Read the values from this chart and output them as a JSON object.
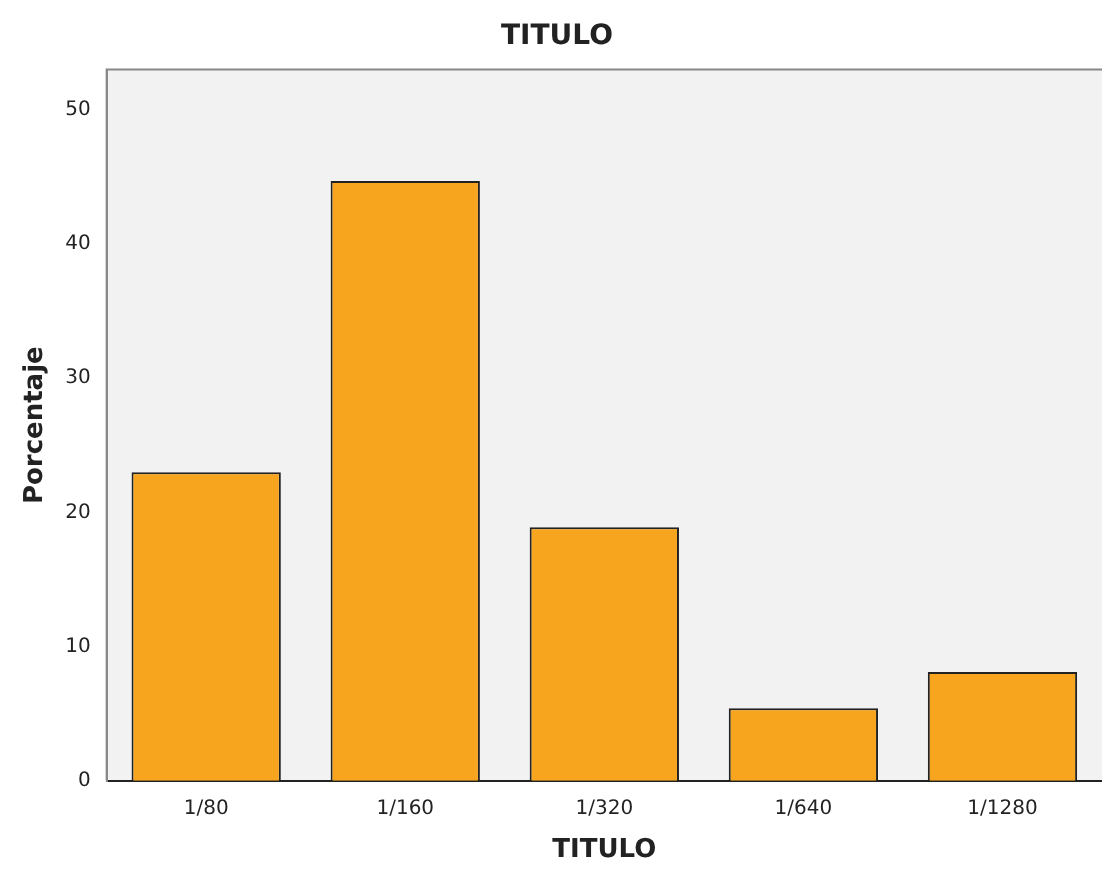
{
  "chart_data": {
    "type": "bar",
    "title": "TITULO",
    "xlabel": "TITULO",
    "ylabel": "Porcentaje",
    "categories": [
      "1/80",
      "1/160",
      "1/320",
      "1/640",
      "1/1280"
    ],
    "values": [
      23.0,
      44.7,
      18.9,
      5.4,
      8.1
    ],
    "color": "#f7a51e",
    "ylim": [
      0,
      53
    ],
    "yticks": [
      0,
      10,
      20,
      30,
      40,
      50
    ],
    "grid": false,
    "legend": false
  }
}
